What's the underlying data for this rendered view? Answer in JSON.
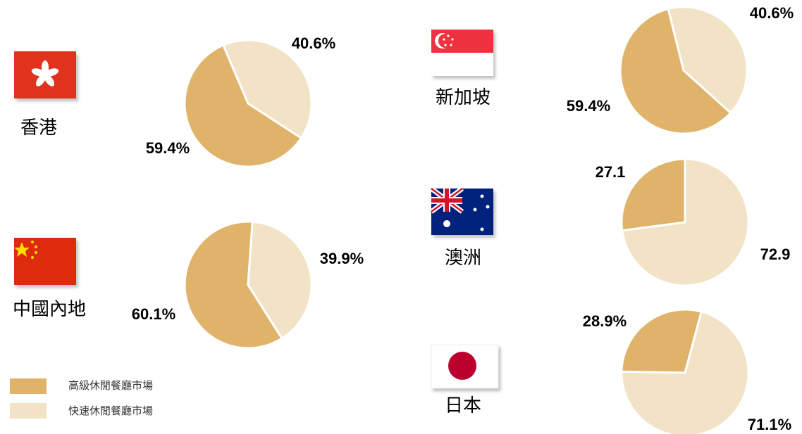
{
  "legend": {
    "labels": [
      "高級休閒餐廳市場",
      "快速休閒餐廳市場"
    ],
    "colors": [
      "#e0b36b",
      "#f2e2c6"
    ]
  },
  "chart_data": [
    {
      "type": "pie",
      "title": "香港",
      "values": [
        59.4,
        40.6
      ],
      "value_labels": [
        "59.4%",
        "40.6%"
      ]
    },
    {
      "type": "pie",
      "title": "中國內地",
      "values": [
        60.1,
        39.9
      ],
      "value_labels": [
        "60.1%",
        "39.9%"
      ]
    },
    {
      "type": "pie",
      "title": "新加坡",
      "values": [
        59.4,
        40.6
      ],
      "value_labels": [
        "59.4%",
        "40.6%"
      ]
    },
    {
      "type": "pie",
      "title": "澳洲",
      "values": [
        27.1,
        72.9
      ]
    },
    {
      "type": "pie",
      "title": "日本",
      "values": [
        28.9,
        71.1
      ],
      "value_labels": [
        "28.9%",
        "71.1%"
      ]
    }
  ]
}
